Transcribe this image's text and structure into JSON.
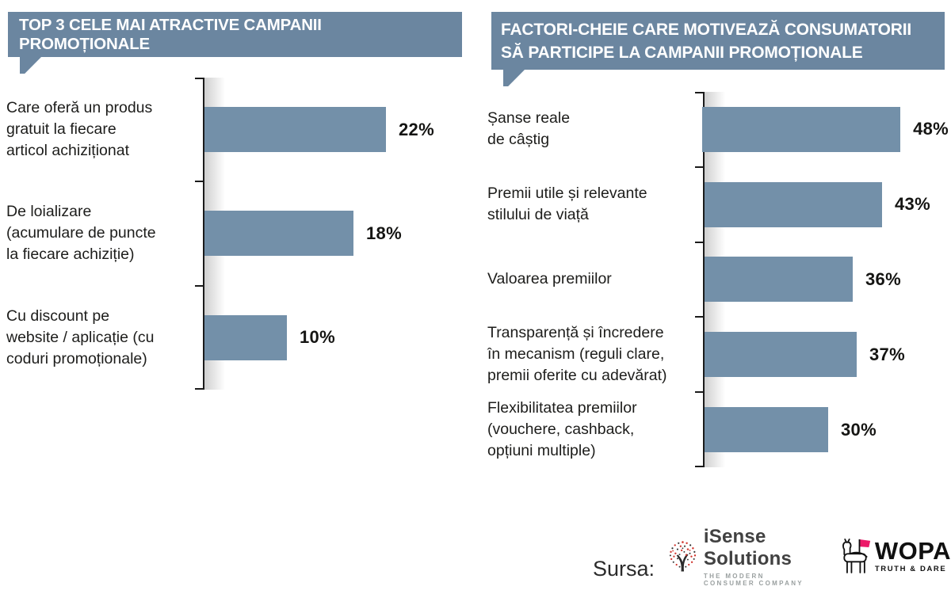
{
  "colors": {
    "bar": "#7390a9",
    "header_bg": "#6b86a0",
    "axis": "#1b1b1b",
    "text": "#1d1d1b",
    "isense_red": "#d0342c",
    "wopa_pink": "#ec1968"
  },
  "chart_data": [
    {
      "type": "bar",
      "orientation": "horizontal",
      "title": "TOP 3 CELE MAI ATRACTIVE CAMPANII PROMOȚIONALE",
      "categories": [
        "Care oferă un produs\ngratuit la fiecare\narticol achiziționat",
        "De loializare\n(acumulare de puncte\nla fiecare achiziție)",
        "Cu discount pe\nwebsite / aplicație (cu\ncoduri promoționale)"
      ],
      "values": [
        22,
        18,
        10
      ],
      "value_labels": [
        "22%",
        "18%",
        "10%"
      ],
      "xlim": [
        0,
        30
      ],
      "grid": false,
      "legend": "none",
      "bar_color": "#7390a9"
    },
    {
      "type": "bar",
      "orientation": "horizontal",
      "title": "FACTORI-CHEIE CARE MOTIVEAZĂ CONSUMATORII\nSĂ PARTICIPE LA CAMPANII PROMOȚIONALE",
      "categories": [
        "Șanse reale\nde câștig",
        "Premii utile și relevante\nstilului de viață",
        "Valoarea premiilor",
        "Transparență și încredere\nîn mecanism (reguli clare,\npremii oferite cu adevărat)",
        "Flexibilitatea premiilor\n(vouchere, cashback,\nopțiuni multiple)"
      ],
      "values": [
        48,
        43,
        36,
        37,
        30
      ],
      "value_labels": [
        "48%",
        "43%",
        "36%",
        "37%",
        "30%"
      ],
      "xlim": [
        0,
        60
      ],
      "grid": false,
      "legend": "none",
      "bar_color": "#7390a9"
    }
  ],
  "footer": {
    "source_label": "Sursa:",
    "isense_name": "iSense Solutions",
    "isense_tagline": "THE MODERN CONSUMER COMPANY",
    "wopa_name": "WOPA",
    "wopa_tagline": "TRUTH & DARE"
  }
}
